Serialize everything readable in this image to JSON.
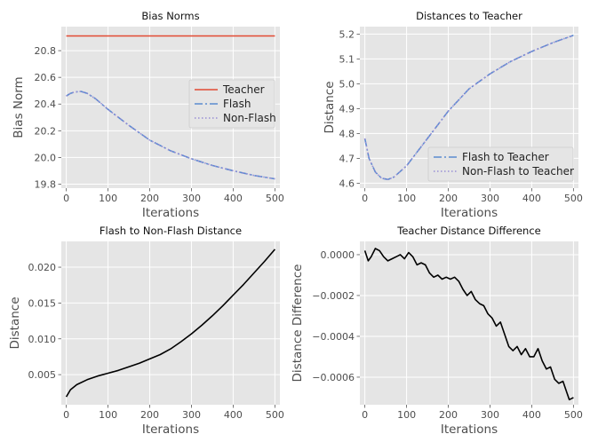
{
  "chart_data": [
    {
      "type": "line",
      "title": "Bias Norms",
      "xlabel": "Iterations",
      "ylabel": "Bias Norm",
      "xlim": [
        -12,
        512
      ],
      "ylim": [
        19.77,
        20.98
      ],
      "xticks": [
        0,
        100,
        200,
        300,
        400,
        500
      ],
      "yticks": [
        19.8,
        20.0,
        20.2,
        20.4,
        20.6,
        20.8
      ],
      "ytick_labels": [
        "19.8",
        "20.0",
        "20.2",
        "20.4",
        "20.6",
        "20.8"
      ],
      "grid": true,
      "legend": "center-right",
      "series": [
        {
          "name": "Teacher",
          "color": "#e24a33",
          "style": "solid",
          "x": [
            0,
            500
          ],
          "y": [
            20.91,
            20.91
          ]
        },
        {
          "name": "Flash",
          "color": "#5b8bd0",
          "style": "dashdot",
          "x": [
            0,
            10,
            20,
            35,
            50,
            70,
            100,
            150,
            200,
            250,
            300,
            350,
            400,
            450,
            500
          ],
          "y": [
            20.46,
            20.48,
            20.49,
            20.495,
            20.48,
            20.44,
            20.36,
            20.24,
            20.13,
            20.05,
            19.99,
            19.94,
            19.9,
            19.865,
            19.84
          ]
        },
        {
          "name": "Non-Flash",
          "color": "#988ed5",
          "style": "dotted",
          "x": [
            0,
            10,
            20,
            35,
            50,
            70,
            100,
            150,
            200,
            250,
            300,
            350,
            400,
            450,
            500
          ],
          "y": [
            20.46,
            20.48,
            20.49,
            20.495,
            20.48,
            20.44,
            20.36,
            20.24,
            20.13,
            20.05,
            19.99,
            19.94,
            19.9,
            19.865,
            19.84
          ]
        }
      ]
    },
    {
      "type": "line",
      "title": "Distances to Teacher",
      "xlabel": "Iterations",
      "ylabel": "Distance",
      "xlim": [
        -12,
        512
      ],
      "ylim": [
        4.58,
        5.23
      ],
      "xticks": [
        0,
        100,
        200,
        300,
        400,
        500
      ],
      "yticks": [
        4.6,
        4.7,
        4.8,
        4.9,
        5.0,
        5.1,
        5.2
      ],
      "ytick_labels": [
        "4.6",
        "4.7",
        "4.8",
        "4.9",
        "5.0",
        "5.1",
        "5.2"
      ],
      "grid": true,
      "legend": "lower-right",
      "series": [
        {
          "name": "Flash to Teacher",
          "color": "#5b8bd0",
          "style": "dashdot",
          "x": [
            0,
            10,
            25,
            40,
            55,
            70,
            100,
            150,
            200,
            250,
            300,
            350,
            400,
            450,
            500
          ],
          "y": [
            4.78,
            4.7,
            4.645,
            4.62,
            4.615,
            4.625,
            4.67,
            4.78,
            4.89,
            4.98,
            5.04,
            5.09,
            5.13,
            5.165,
            5.195
          ]
        },
        {
          "name": "Non-Flash to Teacher",
          "color": "#988ed5",
          "style": "dotted",
          "x": [
            0,
            10,
            25,
            40,
            55,
            70,
            100,
            150,
            200,
            250,
            300,
            350,
            400,
            450,
            500
          ],
          "y": [
            4.78,
            4.7,
            4.645,
            4.62,
            4.615,
            4.625,
            4.67,
            4.78,
            4.89,
            4.98,
            5.04,
            5.09,
            5.13,
            5.165,
            5.195
          ]
        }
      ]
    },
    {
      "type": "line",
      "title": "Flash to Non-Flash Distance",
      "xlabel": "Iterations",
      "ylabel": "Distance",
      "xlim": [
        -12,
        512
      ],
      "ylim": [
        0.0008,
        0.0236
      ],
      "xticks": [
        0,
        100,
        200,
        300,
        400,
        500
      ],
      "yticks": [
        0.005,
        0.01,
        0.015,
        0.02
      ],
      "ytick_labels": [
        "0.005",
        "0.010",
        "0.015",
        "0.020"
      ],
      "grid": true,
      "series": [
        {
          "name": "",
          "color": "#000000",
          "style": "solid",
          "x": [
            0,
            10,
            25,
            50,
            75,
            100,
            125,
            150,
            175,
            200,
            225,
            250,
            275,
            300,
            325,
            350,
            375,
            400,
            425,
            450,
            475,
            500
          ],
          "y": [
            0.0019,
            0.0029,
            0.0036,
            0.0043,
            0.0048,
            0.0052,
            0.0056,
            0.0061,
            0.0066,
            0.0072,
            0.0078,
            0.0086,
            0.0096,
            0.0107,
            0.0119,
            0.0132,
            0.0146,
            0.0161,
            0.0176,
            0.0192,
            0.0208,
            0.0225
          ]
        }
      ]
    },
    {
      "type": "line",
      "title": "Teacher Distance Difference",
      "xlabel": "Iterations",
      "ylabel": "Distance Difference",
      "xlim": [
        -12,
        512
      ],
      "ylim": [
        -0.000735,
        6.5e-05
      ],
      "xticks": [
        0,
        100,
        200,
        300,
        400,
        500
      ],
      "yticks": [
        -0.0006,
        -0.0004,
        -0.0002,
        0.0
      ],
      "ytick_labels": [
        "−0.0006",
        "−0.0004",
        "−0.0002",
        "0.0000"
      ],
      "grid": true,
      "series": [
        {
          "name": "",
          "color": "#000000",
          "style": "solid",
          "x": [
            0,
            8,
            15,
            25,
            35,
            45,
            55,
            65,
            75,
            85,
            95,
            105,
            115,
            125,
            135,
            145,
            155,
            165,
            175,
            185,
            195,
            205,
            215,
            225,
            235,
            245,
            255,
            265,
            275,
            285,
            295,
            305,
            315,
            325,
            335,
            345,
            355,
            365,
            375,
            385,
            395,
            405,
            415,
            425,
            435,
            445,
            455,
            465,
            475,
            485,
            490,
            500
          ],
          "y": [
            2e-05,
            -3e-05,
            -1e-05,
            3e-05,
            2e-05,
            -1e-05,
            -3e-05,
            -2e-05,
            -1e-05,
            0.0,
            -2e-05,
            1e-05,
            -1e-05,
            -5e-05,
            -4e-05,
            -5e-05,
            -9e-05,
            -0.00011,
            -0.0001,
            -0.00012,
            -0.00011,
            -0.00012,
            -0.00011,
            -0.00013,
            -0.00017,
            -0.0002,
            -0.00018,
            -0.00022,
            -0.00024,
            -0.00025,
            -0.00029,
            -0.00031,
            -0.00035,
            -0.00033,
            -0.00039,
            -0.00045,
            -0.00047,
            -0.00045,
            -0.00049,
            -0.00046,
            -0.0005,
            -0.0005,
            -0.00046,
            -0.00052,
            -0.00056,
            -0.00055,
            -0.00061,
            -0.00063,
            -0.00062,
            -0.00068,
            -0.00071,
            -0.0007
          ]
        }
      ]
    }
  ]
}
